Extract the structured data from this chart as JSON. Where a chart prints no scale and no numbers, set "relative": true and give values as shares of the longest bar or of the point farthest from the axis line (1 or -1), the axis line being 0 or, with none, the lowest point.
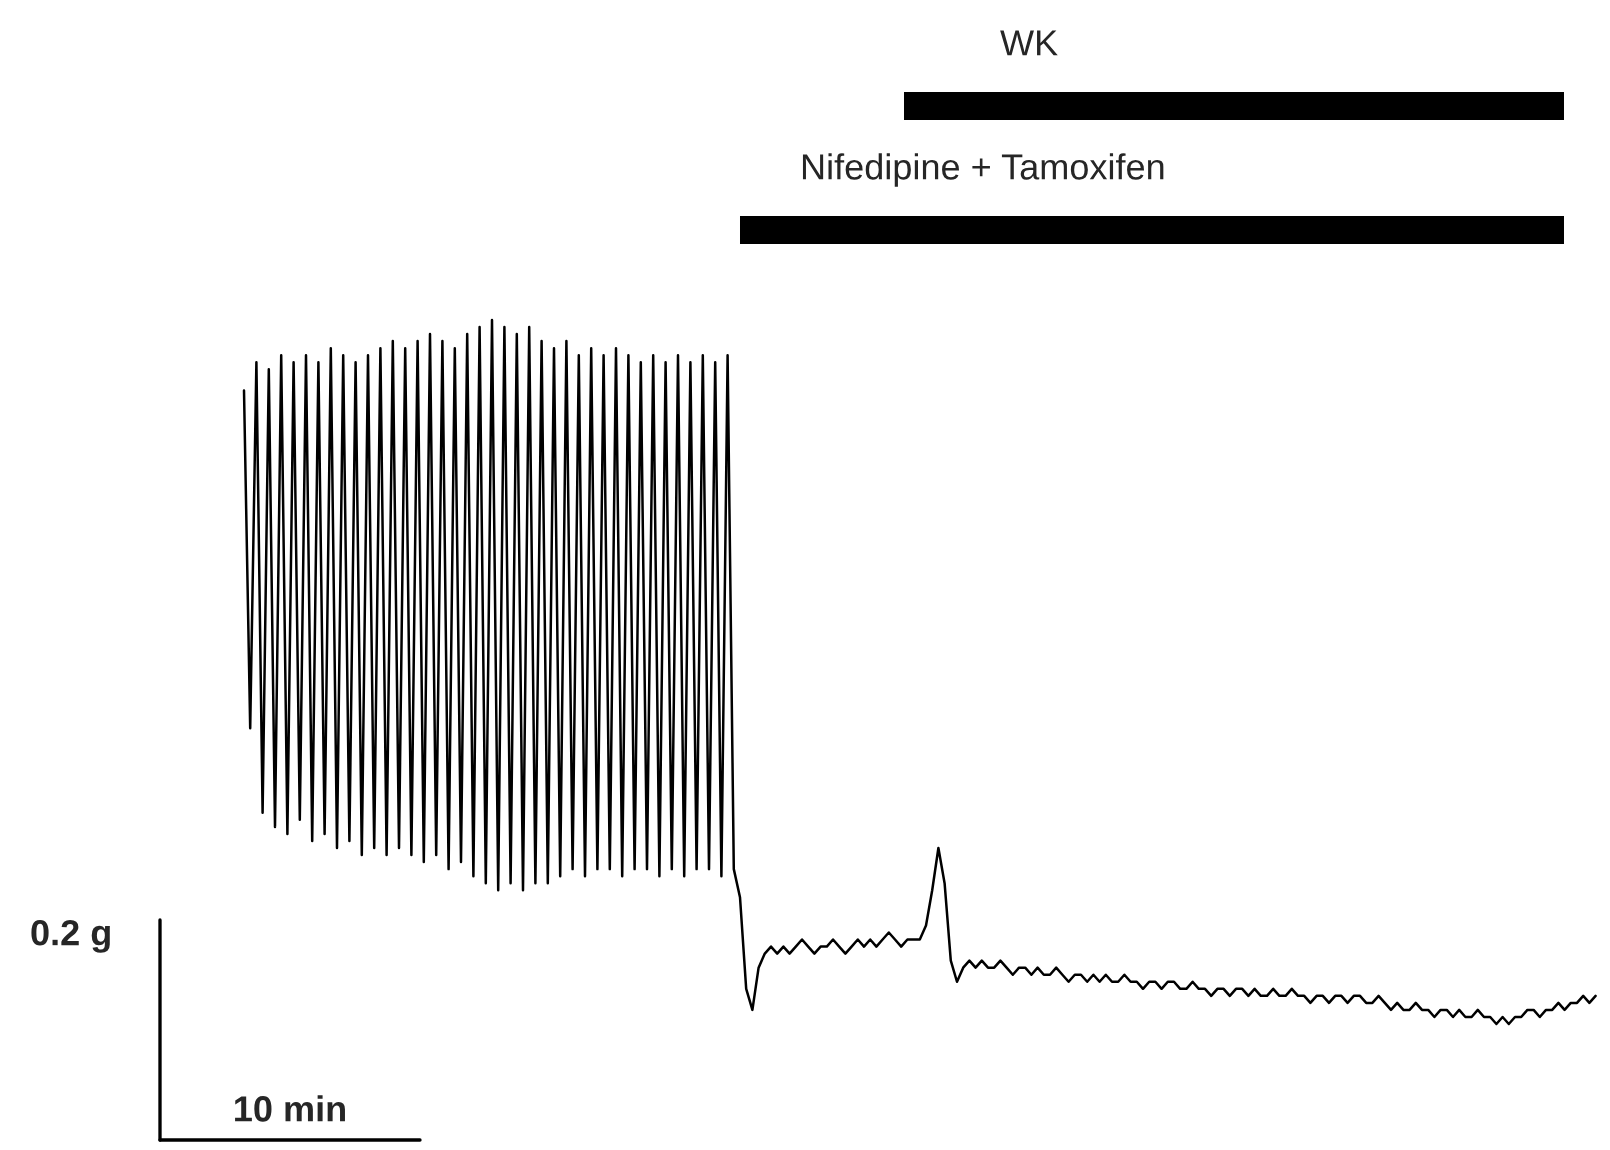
{
  "chart_data": {
    "type": "line",
    "relative": true,
    "categories": [
      null,
      null,
      null,
      null,
      null,
      null,
      null,
      null,
      null,
      null,
      null,
      null,
      null,
      null,
      null,
      null,
      null,
      null,
      null,
      null,
      null,
      null,
      null,
      null,
      null,
      null,
      null,
      null,
      null,
      null,
      null,
      null,
      null,
      null,
      null,
      null,
      null,
      null,
      null,
      null,
      null,
      null,
      null,
      null,
      null,
      null,
      null,
      null,
      null,
      null,
      null,
      null,
      null,
      null,
      null,
      null,
      null,
      null,
      null,
      null,
      null,
      null,
      null,
      null,
      null,
      null,
      null,
      null,
      null,
      null,
      null,
      null,
      null,
      null,
      null,
      null,
      null,
      null,
      null,
      null,
      null,
      null,
      null,
      null,
      null,
      null,
      null,
      null,
      null,
      null,
      null,
      null,
      null,
      null,
      null,
      null,
      null,
      null,
      null,
      null,
      null,
      null,
      null,
      null,
      null,
      null,
      null,
      null,
      null,
      null,
      null,
      null,
      null,
      null,
      null,
      null,
      null,
      null,
      null,
      null,
      null,
      null,
      null,
      null,
      null,
      null,
      null,
      null,
      null,
      null,
      null,
      null,
      null,
      null,
      null,
      null,
      null,
      null,
      null,
      null,
      null,
      null,
      null,
      null,
      null,
      null,
      null,
      null,
      null,
      null,
      null,
      null,
      null,
      null,
      null,
      null,
      null,
      null,
      null,
      null,
      null,
      null,
      null,
      null,
      null,
      null,
      null,
      null,
      null,
      null,
      null,
      null,
      null,
      null,
      null,
      null,
      null,
      null,
      null,
      null,
      null,
      null,
      null,
      null,
      null,
      null,
      null,
      null,
      null,
      null,
      null,
      null,
      null,
      null,
      null,
      null,
      null,
      null,
      null,
      null,
      null,
      null,
      null,
      null,
      null,
      null,
      null,
      null,
      null,
      null,
      null,
      null,
      null,
      null,
      null,
      null,
      null,
      null,
      null
    ],
    "series": [
      {
        "color": "#000000",
        "values": [
          0.9,
          0.42,
          0.94,
          0.3,
          0.93,
          0.28,
          0.95,
          0.27,
          0.94,
          0.29,
          0.95,
          0.26,
          0.94,
          0.27,
          0.96,
          0.25,
          0.95,
          0.26,
          0.94,
          0.24,
          0.95,
          0.25,
          0.96,
          0.24,
          0.97,
          0.25,
          0.96,
          0.24,
          0.97,
          0.23,
          0.98,
          0.24,
          0.97,
          0.22,
          0.96,
          0.23,
          0.98,
          0.21,
          0.99,
          0.2,
          1.0,
          0.19,
          0.99,
          0.2,
          0.98,
          0.19,
          0.99,
          0.2,
          0.97,
          0.2,
          0.96,
          0.21,
          0.97,
          0.22,
          0.95,
          0.21,
          0.96,
          0.22,
          0.95,
          0.22,
          0.96,
          0.21,
          0.95,
          0.22,
          0.94,
          0.22,
          0.95,
          0.21,
          0.94,
          0.22,
          0.95,
          0.21,
          0.94,
          0.22,
          0.95,
          0.22,
          0.94,
          0.21,
          0.95,
          0.22,
          0.18,
          0.05,
          0.02,
          0.08,
          0.1,
          0.11,
          0.1,
          0.11,
          0.1,
          0.11,
          0.12,
          0.11,
          0.1,
          0.11,
          0.11,
          0.12,
          0.11,
          0.1,
          0.11,
          0.12,
          0.11,
          0.12,
          0.11,
          0.12,
          0.13,
          0.12,
          0.11,
          0.12,
          0.12,
          0.12,
          0.14,
          0.19,
          0.25,
          0.2,
          0.09,
          0.06,
          0.08,
          0.09,
          0.08,
          0.09,
          0.08,
          0.08,
          0.09,
          0.08,
          0.07,
          0.08,
          0.08,
          0.07,
          0.08,
          0.07,
          0.07,
          0.08,
          0.07,
          0.06,
          0.07,
          0.07,
          0.06,
          0.07,
          0.06,
          0.07,
          0.06,
          0.06,
          0.07,
          0.06,
          0.06,
          0.05,
          0.06,
          0.06,
          0.05,
          0.06,
          0.06,
          0.05,
          0.05,
          0.06,
          0.05,
          0.05,
          0.04,
          0.05,
          0.05,
          0.04,
          0.05,
          0.05,
          0.04,
          0.05,
          0.04,
          0.04,
          0.05,
          0.04,
          0.04,
          0.05,
          0.04,
          0.04,
          0.03,
          0.04,
          0.04,
          0.03,
          0.04,
          0.04,
          0.03,
          0.04,
          0.04,
          0.03,
          0.03,
          0.04,
          0.03,
          0.02,
          0.03,
          0.02,
          0.02,
          0.03,
          0.02,
          0.02,
          0.01,
          0.02,
          0.02,
          0.01,
          0.02,
          0.01,
          0.01,
          0.02,
          0.01,
          0.01,
          0.0,
          0.01,
          0.0,
          0.01,
          0.01,
          0.02,
          0.02,
          0.01,
          0.02,
          0.02,
          0.03,
          0.02,
          0.03,
          0.03,
          0.04,
          0.03,
          0.04
        ]
      }
    ],
    "annotations": [
      "WK",
      "Nifedipine + Tamoxifen",
      "0.2 g",
      "10 min"
    ]
  }
}
